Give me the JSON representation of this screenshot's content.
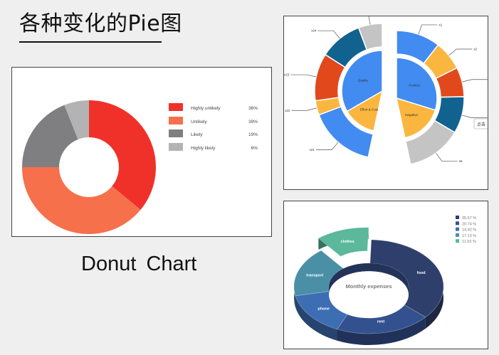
{
  "page": {
    "title": "各种变化的Pie图",
    "caption": "Donut  Chart"
  },
  "chart_data": [
    {
      "type": "pie",
      "variant": "donut",
      "categories": [
        "Highly unlikely",
        "Unlikely",
        "Likely",
        "Highly likely"
      ],
      "values": [
        36,
        39,
        19,
        6
      ],
      "value_labels": [
        "36%",
        "39%",
        "19%",
        "6%"
      ],
      "colors": [
        "#f0312a",
        "#f5704b",
        "#7f7f81",
        "#b3b3b3"
      ],
      "legend": "right"
    },
    {
      "type": "pie",
      "variant": "split nested pie",
      "inner": {
        "labels": [
          "Effort & Cost",
          "Quality",
          "Positive",
          "Negative"
        ],
        "values": [
          12,
          30,
          37,
          21
        ],
        "colors": [
          "#fbb63f",
          "#428bf0",
          "#428bf0",
          "#fbb63f"
        ]
      },
      "outer": {
        "labels": [
          "x1",
          "x2",
          "x3",
          "x4",
          "x5",
          "x21",
          "x22",
          "x23",
          "x24",
          "x25"
        ],
        "values": [
          12,
          8,
          8,
          10,
          15,
          14,
          3,
          10,
          9,
          5
        ],
        "colors": [
          "#428bf0",
          "#fbb63f",
          "#e1481c",
          "#11628f",
          "#c4c4c4",
          "#428bf0",
          "#fbb63f",
          "#e1481c",
          "#11628f",
          "#c4c4c4"
        ]
      },
      "side_button": "点击"
    },
    {
      "type": "pie",
      "variant": "3d donut",
      "title": "Monthly expenses",
      "categories": [
        "food",
        "rent",
        "phone",
        "transport",
        "clothes"
      ],
      "values": [
        35.67,
        20.74,
        14.92,
        17.13,
        11.53
      ],
      "legend_labels": [
        "35.67 %",
        "20.74 %",
        "14.92 %",
        "17.13 %",
        "11.53 %"
      ],
      "colors": [
        "#2e3f6b",
        "#34518f",
        "#3d6db3",
        "#4a8fa6",
        "#5bb89a"
      ],
      "legend": "top-right"
    }
  ]
}
